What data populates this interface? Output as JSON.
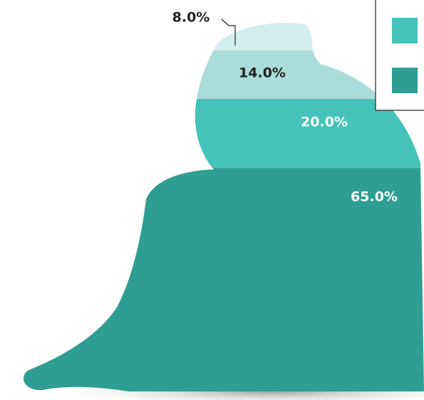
{
  "chart_data": {
    "type": "pictograph",
    "values": [
      8,
      14,
      20,
      65
    ],
    "value_labels": [
      "8.0%",
      "14.0%",
      "20.0%",
      "65.0%"
    ],
    "colors": [
      "#d3eeed",
      "#a9dcda",
      "#45c3bb",
      "#2e9e93"
    ],
    "legend": {
      "colors": [
        "#45c3bb",
        "#2e9e93"
      ],
      "position": "top-right"
    }
  }
}
